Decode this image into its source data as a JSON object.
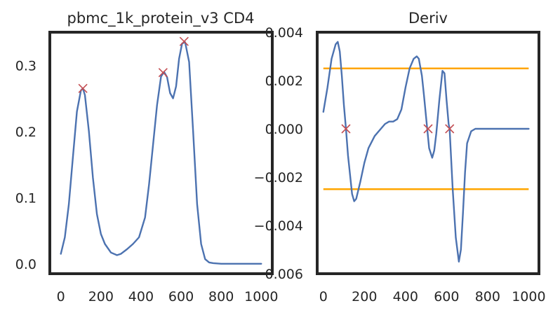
{
  "chart_data": [
    {
      "type": "line",
      "title": "pbmc_1k_protein_v3 CD4",
      "xlim": [
        -55,
        1055
      ],
      "ylim": [
        -0.015,
        0.35
      ],
      "x_ticks": [
        0,
        200,
        400,
        600,
        800,
        1000
      ],
      "x_tick_labels": [
        "0",
        "200",
        "400",
        "600",
        "800",
        "1000"
      ],
      "y_ticks": [
        0.0,
        0.1,
        0.2,
        0.3
      ],
      "y_tick_labels": [
        "0.0",
        "0.1",
        "0.2",
        "0.3"
      ],
      "grid": false,
      "line_color": "#4c72b0",
      "marker_color": "#c44e52",
      "series": [
        {
          "x": [
            0,
            20,
            40,
            60,
            80,
            100,
            110,
            120,
            140,
            160,
            180,
            200,
            220,
            250,
            280,
            300,
            330,
            360,
            390,
            420,
            440,
            460,
            480,
            500,
            515,
            530,
            545,
            560,
            575,
            590,
            605,
            620,
            640,
            660,
            680,
            700,
            720,
            740,
            760,
            800,
            850,
            900,
            950,
            1000
          ],
          "values": [
            0.015,
            0.04,
            0.09,
            0.16,
            0.23,
            0.262,
            0.265,
            0.255,
            0.2,
            0.13,
            0.075,
            0.045,
            0.03,
            0.017,
            0.013,
            0.015,
            0.022,
            0.03,
            0.04,
            0.07,
            0.12,
            0.18,
            0.24,
            0.283,
            0.29,
            0.282,
            0.258,
            0.25,
            0.268,
            0.31,
            0.333,
            0.335,
            0.305,
            0.2,
            0.09,
            0.03,
            0.007,
            0.002,
            0.001,
            0.0,
            0.0,
            0.0,
            0.0,
            0.0
          ]
        }
      ],
      "peaks": [
        {
          "x": 110,
          "y": 0.265
        },
        {
          "x": 510,
          "y": 0.289
        },
        {
          "x": 615,
          "y": 0.336
        }
      ]
    },
    {
      "type": "line",
      "title": "Deriv",
      "xlim": [
        -30,
        1050
      ],
      "ylim": [
        -0.006,
        0.004
      ],
      "x_ticks": [
        0,
        200,
        400,
        600,
        800,
        1000
      ],
      "x_tick_labels": [
        "0",
        "200",
        "400",
        "600",
        "800",
        "1000"
      ],
      "y_ticks": [
        0.004,
        0.002,
        0.0,
        -0.002,
        -0.004,
        -0.006
      ],
      "y_tick_labels": [
        "0.004",
        "0.002",
        "0.000",
        "−0.002",
        "−0.004",
        "−0.006"
      ],
      "grid": false,
      "line_color": "#4c72b0",
      "threshold_color": "#ffa500",
      "marker_color": "#c44e52",
      "series": [
        {
          "x": [
            0,
            20,
            40,
            60,
            70,
            80,
            90,
            100,
            110,
            120,
            140,
            150,
            160,
            180,
            200,
            220,
            250,
            280,
            300,
            320,
            340,
            360,
            380,
            400,
            420,
            440,
            455,
            465,
            480,
            490,
            500,
            515,
            530,
            540,
            550,
            565,
            580,
            590,
            600,
            610,
            615,
            630,
            645,
            660,
            670,
            680,
            690,
            700,
            720,
            740,
            800,
            900,
            1000
          ],
          "values": [
            0.0007,
            0.0017,
            0.0029,
            0.0035,
            0.0036,
            0.0032,
            0.0022,
            0.001,
            0.0,
            -0.0011,
            -0.0027,
            -0.003,
            -0.0029,
            -0.0022,
            -0.0014,
            -0.0008,
            -0.0003,
            0.0,
            0.0002,
            0.0003,
            0.0003,
            0.0004,
            0.0008,
            0.0017,
            0.0025,
            0.0029,
            0.003,
            0.0029,
            0.0022,
            0.0014,
            0.0005,
            -0.0008,
            -0.0012,
            -0.0009,
            -0.0002,
            0.0012,
            0.0024,
            0.0023,
            0.0012,
            0.0002,
            0.0,
            -0.0025,
            -0.0045,
            -0.0055,
            -0.005,
            -0.0035,
            -0.0018,
            -0.0006,
            -0.0001,
            0.0,
            0.0,
            0.0,
            0.0
          ]
        }
      ],
      "thresholds": [
        0.0025,
        -0.0025
      ],
      "threshold_x_range": [
        0,
        1000
      ],
      "zero_crossings": [
        {
          "x": 110,
          "y": 0.0
        },
        {
          "x": 510,
          "y": 0.0
        },
        {
          "x": 615,
          "y": 0.0
        }
      ]
    }
  ]
}
